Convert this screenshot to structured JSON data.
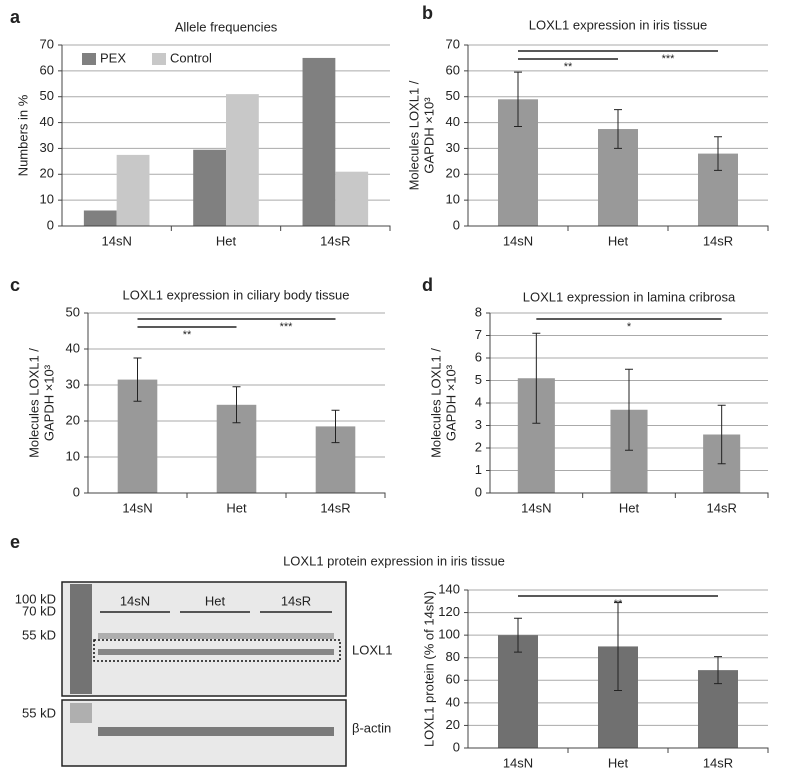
{
  "chart_data": [
    {
      "type": "bar",
      "panel": "a",
      "title": "Allele frequencies",
      "ylabel": [
        "Numbers in %"
      ],
      "categories": [
        "14sN",
        "Het",
        "14sR"
      ],
      "series": [
        {
          "name": "PEX",
          "color": "#808080",
          "values": [
            6,
            29.5,
            65
          ]
        },
        {
          "name": "Control",
          "color": "#c8c8c8",
          "values": [
            27.5,
            51,
            21
          ]
        }
      ],
      "ylim": [
        0,
        70
      ],
      "yticks": [
        0,
        10,
        20,
        30,
        40,
        50,
        60,
        70
      ],
      "grid": true,
      "legend": "upper left"
    },
    {
      "type": "bar",
      "panel": "b",
      "title": "LOXL1 expression in iris tissue",
      "ylabel": [
        "Molecules LOXL1 /",
        "GAPDH ×10³"
      ],
      "categories": [
        "14sN",
        "Het",
        "14sR"
      ],
      "values": [
        49,
        37.5,
        28
      ],
      "errors": [
        10.5,
        7.5,
        6.5
      ],
      "color": "#999999",
      "ylim": [
        0,
        70
      ],
      "yticks": [
        0,
        10,
        20,
        30,
        40,
        50,
        60,
        70
      ],
      "grid": true,
      "annotations": [
        {
          "text": "***",
          "from": "14sN",
          "to": "14sR"
        },
        {
          "text": "**",
          "from": "14sN",
          "to": "Het"
        }
      ]
    },
    {
      "type": "bar",
      "panel": "c",
      "title": "LOXL1 expression in ciliary body tissue",
      "ylabel": [
        "Molecules LOXL1 /",
        "GAPDH ×10³"
      ],
      "categories": [
        "14sN",
        "Het",
        "14sR"
      ],
      "values": [
        31.5,
        24.5,
        18.5
      ],
      "errors": [
        6,
        5,
        4.5
      ],
      "color": "#999999",
      "ylim": [
        0,
        50
      ],
      "yticks": [
        0,
        10,
        20,
        30,
        40,
        50
      ],
      "grid": true,
      "annotations": [
        {
          "text": "***",
          "from": "14sN",
          "to": "14sR"
        },
        {
          "text": "**",
          "from": "14sN",
          "to": "Het"
        }
      ]
    },
    {
      "type": "bar",
      "panel": "d",
      "title": "LOXL1 expression in lamina cribrosa",
      "ylabel": [
        "Molecules LOXL1 /",
        "GAPDH ×10³"
      ],
      "categories": [
        "14sN",
        "Het",
        "14sR"
      ],
      "values": [
        5.1,
        3.7,
        2.6
      ],
      "errors": [
        2,
        1.8,
        1.3
      ],
      "color": "#999999",
      "ylim": [
        0,
        8
      ],
      "yticks": [
        0,
        1,
        2,
        3,
        4,
        5,
        6,
        7,
        8
      ],
      "grid": true,
      "annotations": [
        {
          "text": "*",
          "from": "14sN",
          "to": "14sR"
        }
      ]
    },
    {
      "type": "bar",
      "panel": "e",
      "title": "LOXL1 protein expression in iris tissue",
      "ylabel": [
        "LOXL1 protein (% of 14sN)"
      ],
      "categories": [
        "14sN",
        "Het",
        "14sR"
      ],
      "values": [
        100,
        90,
        69
      ],
      "errors": [
        15,
        39,
        12
      ],
      "color": "#707070",
      "ylim": [
        0,
        140
      ],
      "yticks": [
        0,
        20,
        40,
        60,
        80,
        100,
        120,
        140
      ],
      "grid": true,
      "annotations": [
        {
          "text": "**",
          "from": "14sN",
          "to": "14sR"
        }
      ]
    }
  ],
  "blot": {
    "markers": [
      "100 kD",
      "70 kD",
      "55 kD"
    ],
    "lanes": [
      "14sN",
      "Het",
      "14sR"
    ],
    "target": "LOXL1",
    "loading_marker": "55 kD",
    "loading": "β-actin"
  }
}
